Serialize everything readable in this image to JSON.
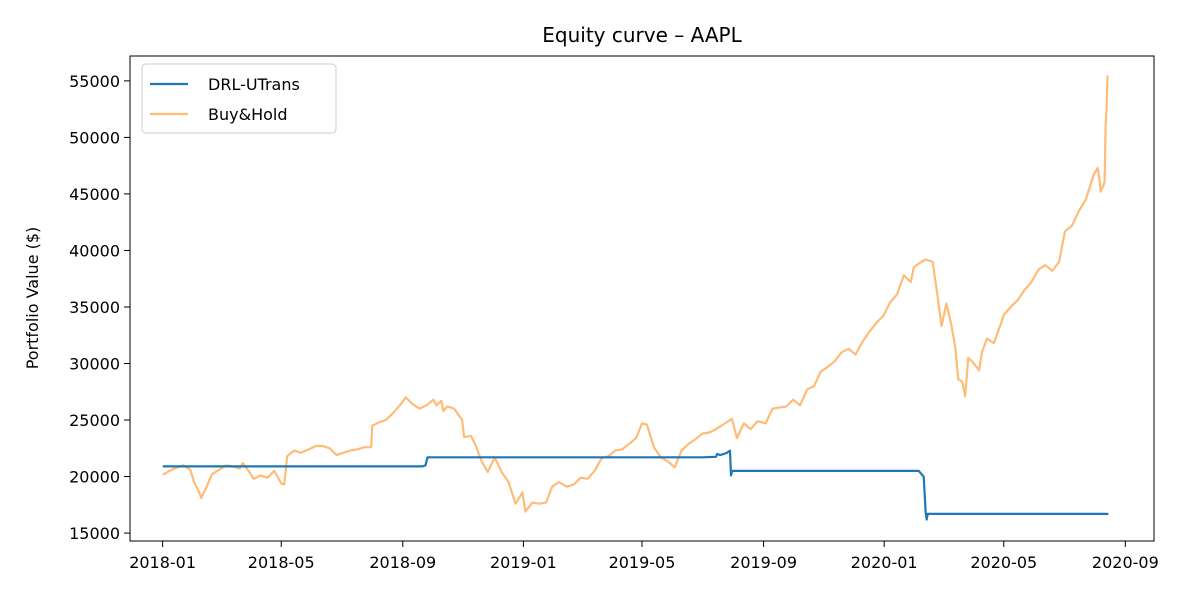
{
  "chart_data": {
    "type": "line",
    "title": "Equity curve – AAPL",
    "xlabel": "",
    "ylabel": "Portfolio Value ($)",
    "x_range": [
      "2017-11-29",
      "2020-09-30"
    ],
    "ylim": [
      14300,
      57200
    ],
    "x_ticks": [
      "2018-01",
      "2018-05",
      "2018-09",
      "2019-01",
      "2019-05",
      "2019-09",
      "2020-01",
      "2020-05",
      "2020-09"
    ],
    "x_tick_dates": [
      "2018-01-01",
      "2018-05-01",
      "2018-09-01",
      "2019-01-01",
      "2019-05-01",
      "2019-09-01",
      "2020-01-01",
      "2020-05-01",
      "2020-09-01"
    ],
    "y_ticks": [
      15000,
      20000,
      25000,
      30000,
      35000,
      40000,
      45000,
      50000,
      55000
    ],
    "y_tick_labels": [
      "15000",
      "20000",
      "25000",
      "30000",
      "35000",
      "40000",
      "45000",
      "50000",
      "55000"
    ],
    "grid": false,
    "legend_position": "top-left",
    "series": [
      {
        "name": "DRL-UTrans",
        "color": "#1f77b4",
        "points": [
          [
            "2018-01-02",
            20900
          ],
          [
            "2018-06-15",
            20900
          ],
          [
            "2018-09-21",
            20900
          ],
          [
            "2018-09-24",
            21000
          ],
          [
            "2018-09-26",
            21700
          ],
          [
            "2019-02-15",
            21700
          ],
          [
            "2019-07-01",
            21700
          ],
          [
            "2019-07-15",
            21750
          ],
          [
            "2019-07-16",
            22000
          ],
          [
            "2019-07-19",
            21900
          ],
          [
            "2019-07-23",
            22000
          ],
          [
            "2019-07-26",
            22100
          ],
          [
            "2019-07-29",
            22300
          ],
          [
            "2019-07-30",
            20100
          ],
          [
            "2019-07-31",
            20400
          ],
          [
            "2019-08-01",
            20500
          ],
          [
            "2019-12-31",
            20500
          ],
          [
            "2020-02-05",
            20500
          ],
          [
            "2020-02-07",
            20300
          ],
          [
            "2020-02-10",
            20000
          ],
          [
            "2020-02-12",
            16800
          ],
          [
            "2020-02-13",
            16200
          ],
          [
            "2020-02-14",
            16700
          ],
          [
            "2020-05-01",
            16700
          ],
          [
            "2020-08-14",
            16700
          ]
        ]
      },
      {
        "name": "Buy&Hold",
        "color": "#ffbb78",
        "points": [
          [
            "2018-01-02",
            20200
          ],
          [
            "2018-01-08",
            20500
          ],
          [
            "2018-01-15",
            20800
          ],
          [
            "2018-01-22",
            21000
          ],
          [
            "2018-01-29",
            20600
          ],
          [
            "2018-02-02",
            19500
          ],
          [
            "2018-02-07",
            18600
          ],
          [
            "2018-02-09",
            18100
          ],
          [
            "2018-02-14",
            19000
          ],
          [
            "2018-02-20",
            20200
          ],
          [
            "2018-02-27",
            20600
          ],
          [
            "2018-03-06",
            21000
          ],
          [
            "2018-03-13",
            20900
          ],
          [
            "2018-03-20",
            20700
          ],
          [
            "2018-03-23",
            21200
          ],
          [
            "2018-03-29",
            20500
          ],
          [
            "2018-04-03",
            19800
          ],
          [
            "2018-04-10",
            20100
          ],
          [
            "2018-04-17",
            19900
          ],
          [
            "2018-04-24",
            20500
          ],
          [
            "2018-05-01",
            19400
          ],
          [
            "2018-05-04",
            19300
          ],
          [
            "2018-05-07",
            21800
          ],
          [
            "2018-05-14",
            22300
          ],
          [
            "2018-05-21",
            22100
          ],
          [
            "2018-05-29",
            22400
          ],
          [
            "2018-06-05",
            22700
          ],
          [
            "2018-06-12",
            22700
          ],
          [
            "2018-06-19",
            22500
          ],
          [
            "2018-06-26",
            21900
          ],
          [
            "2018-07-03",
            22100
          ],
          [
            "2018-07-10",
            22300
          ],
          [
            "2018-07-17",
            22400
          ],
          [
            "2018-07-24",
            22600
          ],
          [
            "2018-07-31",
            22600
          ],
          [
            "2018-08-01",
            24500
          ],
          [
            "2018-08-08",
            24800
          ],
          [
            "2018-08-15",
            25000
          ],
          [
            "2018-08-22",
            25600
          ],
          [
            "2018-08-29",
            26300
          ],
          [
            "2018-09-04",
            27000
          ],
          [
            "2018-09-11",
            26400
          ],
          [
            "2018-09-18",
            26000
          ],
          [
            "2018-09-25",
            26300
          ],
          [
            "2018-10-02",
            26800
          ],
          [
            "2018-10-05",
            26300
          ],
          [
            "2018-10-10",
            26700
          ],
          [
            "2018-10-12",
            25800
          ],
          [
            "2018-10-16",
            26200
          ],
          [
            "2018-10-23",
            26000
          ],
          [
            "2018-10-31",
            25000
          ],
          [
            "2018-11-02",
            23500
          ],
          [
            "2018-11-09",
            23600
          ],
          [
            "2018-11-14",
            22700
          ],
          [
            "2018-11-20",
            21300
          ],
          [
            "2018-11-26",
            20400
          ],
          [
            "2018-12-03",
            21700
          ],
          [
            "2018-12-10",
            20400
          ],
          [
            "2018-12-17",
            19500
          ],
          [
            "2018-12-24",
            17600
          ],
          [
            "2018-12-31",
            18600
          ],
          [
            "2019-01-03",
            16900
          ],
          [
            "2019-01-10",
            17700
          ],
          [
            "2019-01-17",
            17600
          ],
          [
            "2019-01-24",
            17700
          ],
          [
            "2019-01-30",
            19100
          ],
          [
            "2019-02-06",
            19500
          ],
          [
            "2019-02-14",
            19100
          ],
          [
            "2019-02-21",
            19300
          ],
          [
            "2019-02-28",
            19900
          ],
          [
            "2019-03-07",
            19800
          ],
          [
            "2019-03-14",
            20500
          ],
          [
            "2019-03-21",
            21600
          ],
          [
            "2019-03-28",
            21800
          ],
          [
            "2019-04-04",
            22300
          ],
          [
            "2019-04-11",
            22400
          ],
          [
            "2019-04-18",
            22900
          ],
          [
            "2019-04-25",
            23400
          ],
          [
            "2019-05-01",
            24700
          ],
          [
            "2019-05-06",
            24600
          ],
          [
            "2019-05-13",
            22600
          ],
          [
            "2019-05-20",
            21700
          ],
          [
            "2019-05-28",
            21300
          ],
          [
            "2019-06-03",
            20800
          ],
          [
            "2019-06-10",
            22300
          ],
          [
            "2019-06-17",
            22900
          ],
          [
            "2019-06-24",
            23300
          ],
          [
            "2019-07-01",
            23800
          ],
          [
            "2019-07-08",
            23900
          ],
          [
            "2019-07-15",
            24200
          ],
          [
            "2019-07-22",
            24600
          ],
          [
            "2019-07-31",
            25100
          ],
          [
            "2019-08-05",
            23400
          ],
          [
            "2019-08-12",
            24700
          ],
          [
            "2019-08-19",
            24200
          ],
          [
            "2019-08-26",
            24900
          ],
          [
            "2019-09-03",
            24700
          ],
          [
            "2019-09-10",
            26000
          ],
          [
            "2019-09-17",
            26100
          ],
          [
            "2019-09-24",
            26200
          ],
          [
            "2019-10-01",
            26800
          ],
          [
            "2019-10-08",
            26300
          ],
          [
            "2019-10-15",
            27700
          ],
          [
            "2019-10-22",
            28000
          ],
          [
            "2019-10-29",
            29300
          ],
          [
            "2019-11-05",
            29700
          ],
          [
            "2019-11-12",
            30200
          ],
          [
            "2019-11-19",
            31000
          ],
          [
            "2019-11-26",
            31300
          ],
          [
            "2019-12-03",
            30800
          ],
          [
            "2019-12-10",
            31900
          ],
          [
            "2019-12-17",
            32800
          ],
          [
            "2019-12-24",
            33600
          ],
          [
            "2019-12-31",
            34200
          ],
          [
            "2020-01-07",
            35400
          ],
          [
            "2020-01-14",
            36100
          ],
          [
            "2020-01-21",
            37800
          ],
          [
            "2020-01-28",
            37200
          ],
          [
            "2020-01-31",
            38500
          ],
          [
            "2020-02-06",
            38900
          ],
          [
            "2020-02-12",
            39200
          ],
          [
            "2020-02-19",
            39000
          ],
          [
            "2020-02-24",
            36000
          ],
          [
            "2020-02-28",
            33300
          ],
          [
            "2020-03-04",
            35300
          ],
          [
            "2020-03-09",
            33400
          ],
          [
            "2020-03-13",
            31400
          ],
          [
            "2020-03-16",
            28600
          ],
          [
            "2020-03-20",
            28400
          ],
          [
            "2020-03-23",
            27100
          ],
          [
            "2020-03-26",
            30500
          ],
          [
            "2020-03-31",
            30100
          ],
          [
            "2020-04-06",
            29400
          ],
          [
            "2020-04-09",
            31000
          ],
          [
            "2020-04-14",
            32200
          ],
          [
            "2020-04-21",
            31800
          ],
          [
            "2020-04-28",
            33500
          ],
          [
            "2020-05-01",
            34300
          ],
          [
            "2020-05-08",
            35000
          ],
          [
            "2020-05-15",
            35600
          ],
          [
            "2020-05-22",
            36500
          ],
          [
            "2020-05-29",
            37200
          ],
          [
            "2020-06-05",
            38300
          ],
          [
            "2020-06-12",
            38700
          ],
          [
            "2020-06-19",
            38200
          ],
          [
            "2020-06-26",
            39000
          ],
          [
            "2020-07-02",
            41700
          ],
          [
            "2020-07-09",
            42200
          ],
          [
            "2020-07-16",
            43500
          ],
          [
            "2020-07-23",
            44500
          ],
          [
            "2020-07-31",
            46700
          ],
          [
            "2020-08-04",
            47300
          ],
          [
            "2020-08-06",
            46200
          ],
          [
            "2020-08-07",
            45200
          ],
          [
            "2020-08-10",
            45800
          ],
          [
            "2020-08-11",
            46100
          ],
          [
            "2020-08-12",
            51000
          ],
          [
            "2020-08-13",
            52600
          ],
          [
            "2020-08-14",
            55400
          ]
        ]
      }
    ]
  }
}
